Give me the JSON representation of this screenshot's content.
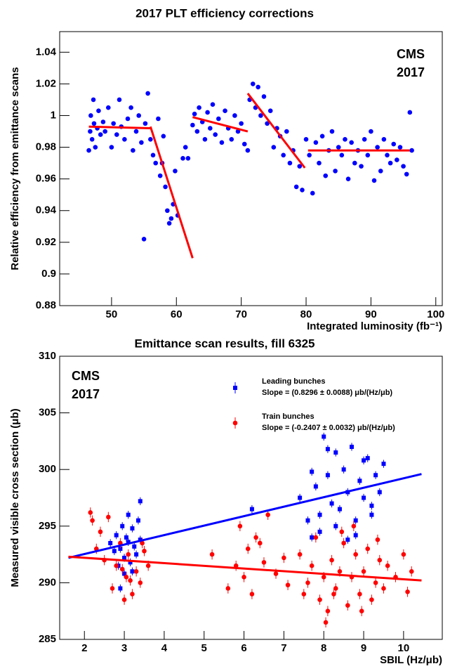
{
  "chart_data": [
    {
      "type": "scatter",
      "title": "2017 PLT efficiency corrections",
      "x_label": "Integrated luminosity (fb⁻¹)",
      "y_label": "Relative efficiency from emittance scans",
      "annotations": [
        "CMS",
        "2017"
      ],
      "xlim": [
        42,
        101
      ],
      "xticks": [
        50,
        60,
        70,
        80,
        90,
        100
      ],
      "ylim": [
        0.88,
        1.053
      ],
      "yticks": [
        0.88,
        0.9,
        0.92,
        0.94,
        0.96,
        0.98,
        1,
        1.02,
        1.04
      ],
      "series": [
        {
          "color": "#0000ff",
          "marker": "circle",
          "x": [
            46.5,
            46.7,
            46.8,
            47.0,
            47.2,
            47.3,
            47.5,
            47.8,
            48.0,
            48.3,
            48.7,
            49.0,
            49.5,
            50.0,
            50.3,
            50.8,
            51.2,
            51.5,
            52.0,
            52.5,
            53.0,
            53.3,
            53.8,
            54.2,
            54.6,
            55.0,
            55.2,
            55.6,
            56.0,
            56.4,
            56.8,
            57.2,
            57.5,
            57.8,
            58.0,
            58.3,
            58.6,
            58.9,
            59.2,
            59.5,
            59.8,
            60.2,
            61.0,
            61.4,
            61.8,
            62.5,
            62.8,
            63.2,
            63.5,
            64.0,
            64.4,
            64.8,
            65.2,
            65.6,
            66.0,
            66.5,
            67.0,
            67.5,
            68.0,
            68.5,
            69.0,
            69.5,
            70.0,
            70.5,
            71.0,
            71.3,
            71.8,
            72.2,
            72.6,
            73.0,
            73.5,
            74.0,
            74.5,
            75.0,
            75.5,
            76.0,
            76.5,
            77.0,
            77.5,
            78.0,
            78.5,
            79.0,
            79.4,
            80.0,
            80.5,
            81.0,
            81.5,
            82.0,
            82.5,
            83.0,
            83.5,
            84.0,
            84.5,
            85.0,
            85.5,
            86.0,
            86.5,
            87.0,
            87.5,
            88.0,
            88.5,
            89.0,
            89.5,
            90.0,
            90.5,
            91.0,
            91.5,
            92.0,
            92.5,
            93.0,
            93.5,
            94.0,
            94.5,
            95.0,
            95.5,
            96.0,
            96.3
          ],
          "values": [
            0.978,
            0.99,
            1.0,
            0.985,
            1.01,
            0.995,
            0.98,
            0.992,
            1.003,
            0.988,
            0.996,
            0.99,
            1.005,
            0.98,
            0.995,
            0.988,
            1.01,
            0.993,
            0.985,
            0.998,
            1.005,
            0.978,
            0.99,
            1.0,
            0.983,
            0.922,
            0.995,
            1.014,
            0.985,
            0.975,
            0.97,
            0.998,
            0.962,
            0.97,
            0.987,
            0.955,
            0.94,
            0.932,
            0.935,
            0.944,
            0.965,
            0.937,
            0.973,
            0.98,
            0.973,
            0.994,
            1.001,
            0.99,
            1.005,
            0.996,
            0.985,
            1.002,
            0.992,
            1.007,
            0.988,
            0.998,
            0.983,
            1.003,
            0.992,
            0.985,
            1.0,
            0.99,
            0.995,
            0.982,
            0.978,
            1.01,
            1.02,
            1.005,
            1.018,
            1.0,
            1.012,
            0.995,
            1.003,
            0.98,
            0.992,
            0.987,
            0.975,
            0.99,
            0.97,
            0.978,
            0.955,
            0.968,
            0.953,
            0.985,
            0.975,
            0.951,
            0.983,
            0.97,
            0.987,
            0.962,
            0.978,
            0.99,
            0.965,
            0.98,
            0.975,
            0.985,
            0.96,
            0.983,
            0.97,
            0.978,
            0.968,
            0.985,
            0.975,
            0.99,
            0.959,
            0.98,
            0.965,
            0.985,
            0.975,
            0.97,
            0.982,
            0.972,
            0.98,
            0.968,
            0.963,
            1.002,
            0.978
          ]
        }
      ],
      "fit_color": "#ff0000",
      "fits": [
        {
          "x": [
            46.5,
            56
          ],
          "values": [
            0.993,
            0.992
          ]
        },
        {
          "x": [
            56,
            62.5
          ],
          "values": [
            0.993,
            0.91
          ]
        },
        {
          "x": [
            62.5,
            71
          ],
          "values": [
            0.999,
            0.99
          ]
        },
        {
          "x": [
            71,
            79.8
          ],
          "values": [
            1.014,
            0.967
          ]
        },
        {
          "x": [
            80.3,
            96
          ],
          "values": [
            0.978,
            0.978
          ]
        }
      ]
    },
    {
      "type": "scatter",
      "title": "Emittance scan results, fill 6325",
      "x_label": "SBIL (Hz/μb)",
      "y_label": "Measured visible cross section (μb)",
      "annotations": [
        "CMS",
        "2017"
      ],
      "xlim": [
        1.38,
        10.97
      ],
      "xticks": [
        2,
        3,
        4,
        5,
        6,
        7,
        8,
        9,
        10
      ],
      "ylim": [
        285,
        310
      ],
      "yticks": [
        285,
        290,
        295,
        300,
        305,
        310
      ],
      "series": [
        {
          "name": "Leading bunches",
          "slope_label": "Slope = (0.8296 ± 0.0088) μb/(Hz/μb)",
          "color": "#0000ff",
          "marker": "square",
          "yerr": 0.35,
          "x": [
            2.65,
            2.75,
            2.8,
            2.85,
            2.9,
            2.95,
            3.0,
            3.05,
            3.1,
            3.15,
            3.2,
            3.25,
            3.3,
            3.35,
            3.4,
            2.9,
            3.0,
            3.1,
            3.2,
            3.4,
            6.2,
            7.4,
            7.6,
            7.7,
            7.8,
            7.9,
            8.0,
            8.1,
            8.2,
            8.3,
            8.4,
            8.5,
            8.6,
            8.7,
            8.8,
            8.9,
            9.0,
            9.1,
            9.2,
            9.3,
            9.4,
            9.5,
            7.9,
            8.3,
            8.8,
            9.2,
            8.1,
            8.6,
            9.0,
            7.7
          ],
          "values": [
            293.5,
            292.8,
            294.2,
            291.5,
            293.0,
            295.0,
            292.2,
            294.0,
            293.6,
            291.8,
            294.8,
            293.2,
            292.5,
            295.5,
            297.2,
            289.5,
            290.8,
            296.0,
            291.0,
            293.8,
            296.5,
            297.5,
            295.5,
            294.0,
            298.5,
            296.0,
            302.9,
            299.5,
            297.0,
            301.5,
            296.5,
            300.0,
            298.0,
            302.0,
            295.5,
            299.0,
            297.5,
            301.0,
            296.0,
            299.5,
            298.0,
            300.5,
            294.5,
            295.0,
            294.2,
            296.8,
            301.8,
            293.8,
            300.8,
            299.8
          ]
        },
        {
          "name": "Train bunches",
          "slope_label": "Slope = (-0.2407 ± 0.0032) μb/(Hz/μb)",
          "color": "#ff0000",
          "marker": "circle",
          "yerr": 0.45,
          "x": [
            2.15,
            2.2,
            2.3,
            2.4,
            2.5,
            2.6,
            2.7,
            2.8,
            2.9,
            3.0,
            3.05,
            3.1,
            3.2,
            3.3,
            3.4,
            3.5,
            3.6,
            2.95,
            3.15,
            3.45,
            5.2,
            5.6,
            5.8,
            5.9,
            6.0,
            6.1,
            6.2,
            6.3,
            6.5,
            6.6,
            6.8,
            7.0,
            7.1,
            6.4,
            7.4,
            7.5,
            7.7,
            7.8,
            7.9,
            8.0,
            8.1,
            8.2,
            8.3,
            8.4,
            8.5,
            8.6,
            8.7,
            8.8,
            8.9,
            9.0,
            9.1,
            9.2,
            9.3,
            9.4,
            9.5,
            9.6,
            9.8,
            10.0,
            10.1,
            10.2,
            8.05,
            8.45,
            8.95,
            9.35,
            7.6,
            8.25,
            8.75
          ],
          "values": [
            296.2,
            295.5,
            293.0,
            294.5,
            292.0,
            295.8,
            289.5,
            291.5,
            293.5,
            288.5,
            290.5,
            292.5,
            289.0,
            291.0,
            290.0,
            292.8,
            291.5,
            291.2,
            290.2,
            293.5,
            292.5,
            289.5,
            291.5,
            295.0,
            290.5,
            293.0,
            289.0,
            294.0,
            291.8,
            296.0,
            290.8,
            292.2,
            289.8,
            293.5,
            292.5,
            289.0,
            291.5,
            294.0,
            288.5,
            290.5,
            287.5,
            292.0,
            289.5,
            291.0,
            293.5,
            288.0,
            290.5,
            292.5,
            289.0,
            291.0,
            293.0,
            288.5,
            290.0,
            292.0,
            289.5,
            291.5,
            290.5,
            292.5,
            289.2,
            291.0,
            286.5,
            294.5,
            287.5,
            293.8,
            290.0,
            289.0,
            295.0
          ]
        }
      ],
      "fit_lines": [
        {
          "x": [
            1.6,
            10.45
          ],
          "values": [
            292.2,
            299.6
          ]
        },
        {
          "x": [
            1.6,
            10.45
          ],
          "values": [
            292.3,
            290.2
          ]
        }
      ]
    }
  ]
}
